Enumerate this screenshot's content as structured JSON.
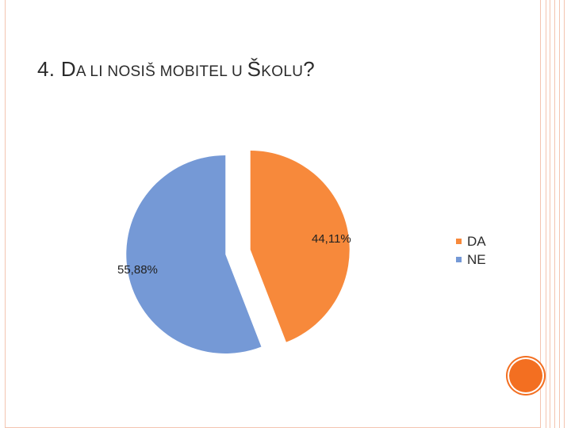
{
  "title": {
    "prefix": "4. ",
    "runs": [
      {
        "cap": "D",
        "rest": "A"
      },
      {
        "cap": "",
        "rest": " LI NOSIŠ MOBITEL U "
      },
      {
        "cap": "Š",
        "rest": "KOLU"
      },
      {
        "cap": "?",
        "rest": ""
      }
    ]
  },
  "colors": {
    "da": "#f7893b",
    "ne": "#7599d6",
    "accent": "#f36f21",
    "border": "#f4c4b0"
  },
  "chart_data": {
    "type": "pie",
    "title": "4. DA LI NOSIŠ MOBITEL U ŠKOLU?",
    "exploded": true,
    "legend_position": "right",
    "slices": [
      {
        "name": "DA",
        "value": 44.11,
        "label": "44,11%"
      },
      {
        "name": "NE",
        "value": 55.88,
        "label": "55,88%"
      }
    ]
  }
}
